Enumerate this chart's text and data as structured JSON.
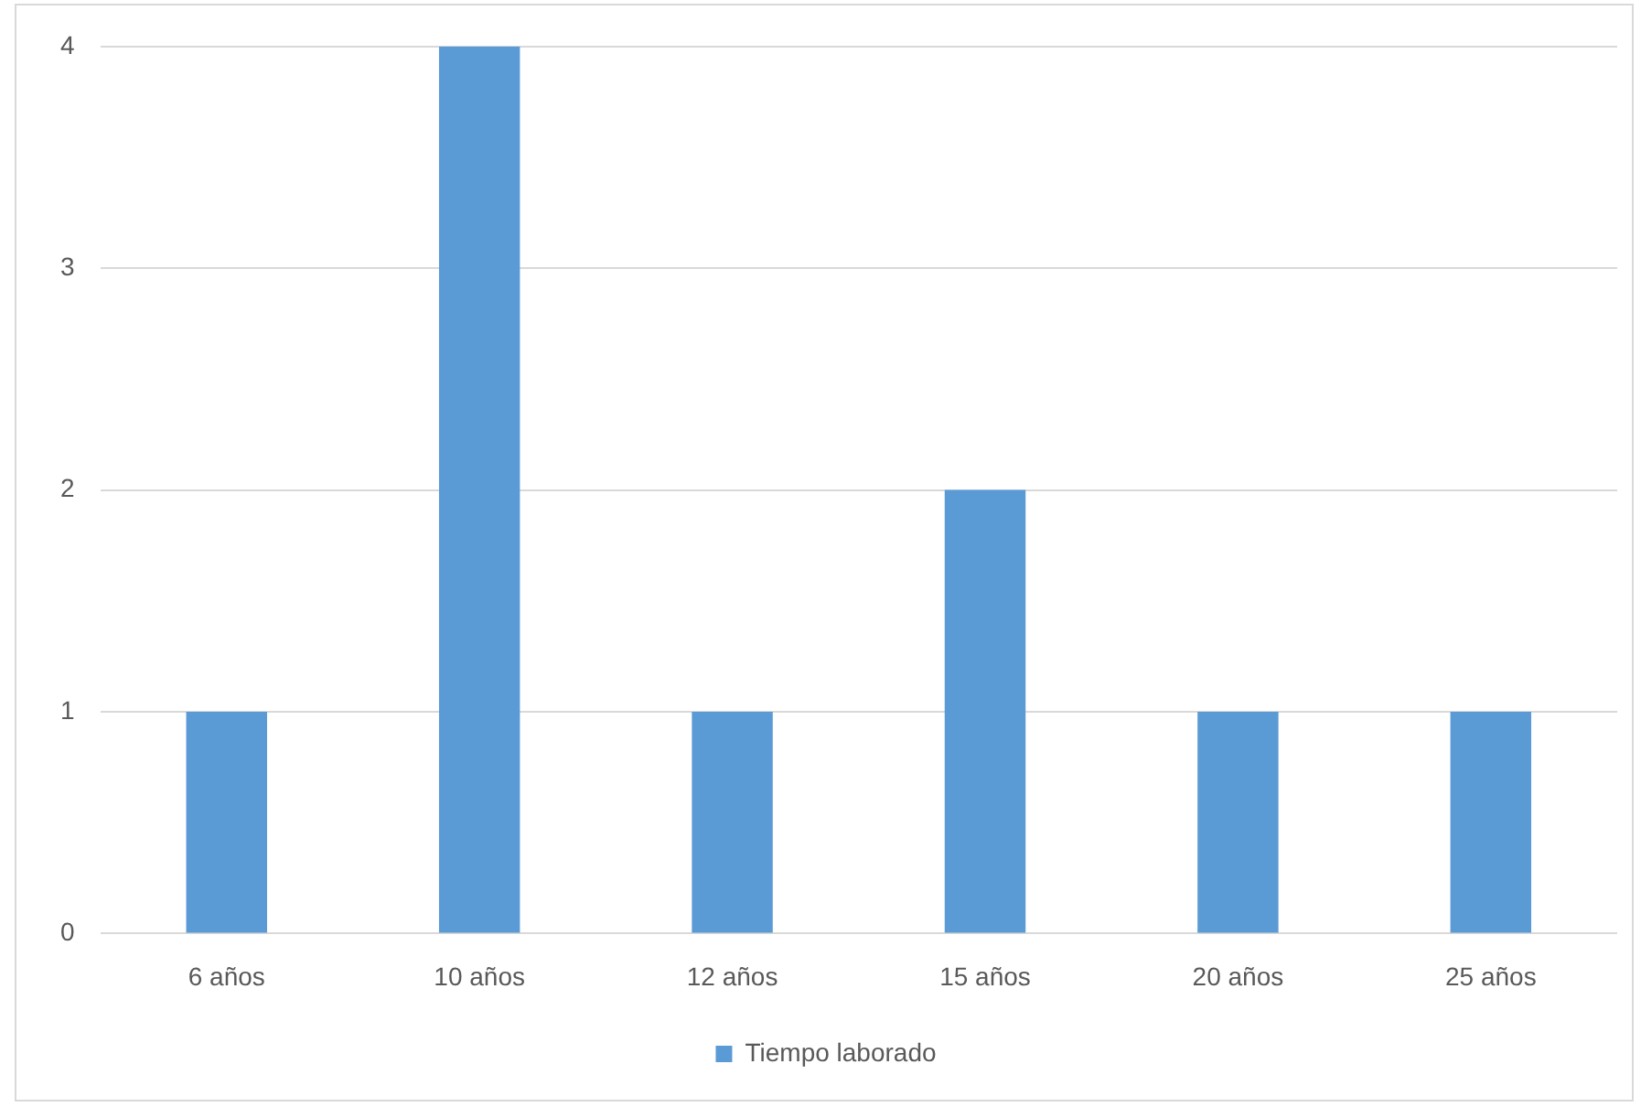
{
  "chart_data": {
    "type": "bar",
    "categories": [
      "6 años",
      "10 años",
      "12 años",
      "15 años",
      "20 años",
      "25 años"
    ],
    "series": [
      {
        "name": "Tiempo laborado",
        "color": "#5b9bd5",
        "values": [
          1,
          4,
          1,
          2,
          1,
          1
        ]
      }
    ],
    "ylim": [
      0,
      4
    ],
    "yticks": [
      0,
      1,
      2,
      3,
      4
    ],
    "grid": "y",
    "legend": "bottom"
  }
}
